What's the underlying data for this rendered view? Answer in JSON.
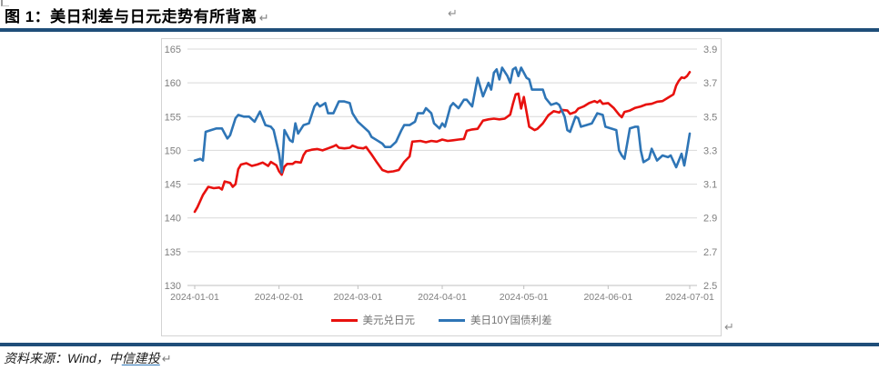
{
  "header": {
    "title": "图 1：美日利差与日元走势有所背离",
    "return_mark": "↵",
    "secondary_return_mark": "↵"
  },
  "footer": {
    "source_prefix": "资料来源：Wind，中",
    "source_link": "信建投",
    "return_mark": "↵"
  },
  "theme": {
    "rule_color": "#1f4e79",
    "axis_label_color": "#7f7f7f",
    "gridline_color": "#d9d9d9",
    "axis_line_color": "#bfbfbf",
    "box_border_color": "#d3d3d3",
    "legend_text_color": "#737373",
    "hyperlink_color": "#2e75b6"
  },
  "chart_data": {
    "type": "line",
    "title": "",
    "grid": true,
    "legend_position": "bottom",
    "x": {
      "labels": [
        "2024-01-01",
        "2024-02-01",
        "2024-03-01",
        "2024-04-01",
        "2024-05-01",
        "2024-06-01",
        "2024-07-01"
      ],
      "label_days": [
        0,
        31,
        60,
        91,
        121,
        152,
        182
      ],
      "domain_days": [
        0,
        182
      ]
    },
    "left_axis": {
      "min": 130,
      "max": 165,
      "ticks": [
        "165",
        "160",
        "155",
        "150",
        "145",
        "140",
        "135",
        "130"
      ]
    },
    "right_axis": {
      "min": 2.5,
      "max": 3.9,
      "ticks": [
        "3.9",
        "3.7",
        "3.5",
        "3.3",
        "3.1",
        "2.9",
        "2.7",
        "2.5"
      ]
    },
    "series": [
      {
        "name": "美元兑日元",
        "axis": "left",
        "color": "#e8110e",
        "points": [
          [
            0,
            140.9
          ],
          [
            1,
            141.6
          ],
          [
            3,
            143.4
          ],
          [
            5,
            144.6
          ],
          [
            7,
            144.4
          ],
          [
            9,
            144.5
          ],
          [
            10,
            144.2
          ],
          [
            11,
            145.4
          ],
          [
            13,
            145.2
          ],
          [
            14,
            144.6
          ],
          [
            15,
            145.0
          ],
          [
            16,
            147.2
          ],
          [
            17,
            147.9
          ],
          [
            19,
            148.1
          ],
          [
            21,
            147.7
          ],
          [
            23,
            147.9
          ],
          [
            25,
            148.2
          ],
          [
            27,
            147.7
          ],
          [
            28,
            148.3
          ],
          [
            30,
            147.8
          ],
          [
            31,
            146.9
          ],
          [
            32,
            146.4
          ],
          [
            33,
            147.6
          ],
          [
            34,
            148.0
          ],
          [
            36,
            148.0
          ],
          [
            37,
            148.3
          ],
          [
            39,
            148.2
          ],
          [
            40,
            149.3
          ],
          [
            41,
            149.9
          ],
          [
            43,
            150.1
          ],
          [
            45,
            150.2
          ],
          [
            47,
            150.0
          ],
          [
            49,
            150.3
          ],
          [
            51,
            150.6
          ],
          [
            52,
            150.8
          ],
          [
            53,
            150.4
          ],
          [
            55,
            150.3
          ],
          [
            57,
            150.4
          ],
          [
            58,
            150.7
          ],
          [
            60,
            150.4
          ],
          [
            62,
            150.3
          ],
          [
            63,
            150.5
          ],
          [
            65,
            149.4
          ],
          [
            67,
            148.2
          ],
          [
            69,
            147.1
          ],
          [
            71,
            146.8
          ],
          [
            73,
            146.9
          ],
          [
            75,
            147.1
          ],
          [
            77,
            148.3
          ],
          [
            79,
            149.1
          ],
          [
            80,
            151.3
          ],
          [
            83,
            151.4
          ],
          [
            85,
            151.2
          ],
          [
            87,
            151.4
          ],
          [
            89,
            151.3
          ],
          [
            91,
            151.6
          ],
          [
            93,
            151.4
          ],
          [
            95,
            151.5
          ],
          [
            97,
            151.6
          ],
          [
            99,
            151.7
          ],
          [
            100,
            152.9
          ],
          [
            102,
            153.1
          ],
          [
            104,
            153.2
          ],
          [
            106,
            154.4
          ],
          [
            108,
            154.6
          ],
          [
            110,
            154.7
          ],
          [
            112,
            154.6
          ],
          [
            114,
            154.7
          ],
          [
            116,
            155.3
          ],
          [
            117,
            156.9
          ],
          [
            118,
            158.3
          ],
          [
            119,
            158.4
          ],
          [
            120,
            156.2
          ],
          [
            121,
            157.9
          ],
          [
            123,
            153.5
          ],
          [
            125,
            153.0
          ],
          [
            126,
            153.2
          ],
          [
            128,
            154.0
          ],
          [
            130,
            155.2
          ],
          [
            132,
            155.8
          ],
          [
            134,
            155.6
          ],
          [
            135,
            156.0
          ],
          [
            137,
            155.9
          ],
          [
            138,
            155.4
          ],
          [
            140,
            155.7
          ],
          [
            141,
            156.2
          ],
          [
            143,
            156.5
          ],
          [
            145,
            157.0
          ],
          [
            147,
            157.3
          ],
          [
            148,
            157.1
          ],
          [
            149,
            157.4
          ],
          [
            150,
            156.9
          ],
          [
            152,
            157.0
          ],
          [
            154,
            156.3
          ],
          [
            156,
            155.3
          ],
          [
            157,
            154.9
          ],
          [
            158,
            155.7
          ],
          [
            160,
            155.9
          ],
          [
            162,
            156.3
          ],
          [
            164,
            156.5
          ],
          [
            166,
            156.8
          ],
          [
            168,
            156.9
          ],
          [
            170,
            157.2
          ],
          [
            172,
            157.3
          ],
          [
            174,
            157.8
          ],
          [
            176,
            158.3
          ],
          [
            177,
            159.6
          ],
          [
            178,
            160.3
          ],
          [
            179,
            160.8
          ],
          [
            180,
            160.7
          ],
          [
            181,
            161.0
          ],
          [
            182,
            161.6
          ]
        ]
      },
      {
        "name": "美日10Y国债利差",
        "axis": "right",
        "color": "#2e75b6",
        "points": [
          [
            0,
            3.24
          ],
          [
            2,
            3.25
          ],
          [
            3,
            3.24
          ],
          [
            4,
            3.41
          ],
          [
            6,
            3.42
          ],
          [
            8,
            3.43
          ],
          [
            10,
            3.43
          ],
          [
            11,
            3.4
          ],
          [
            12,
            3.37
          ],
          [
            13,
            3.39
          ],
          [
            15,
            3.49
          ],
          [
            16,
            3.51
          ],
          [
            18,
            3.5
          ],
          [
            20,
            3.5
          ],
          [
            22,
            3.47
          ],
          [
            23,
            3.5
          ],
          [
            24,
            3.53
          ],
          [
            26,
            3.45
          ],
          [
            28,
            3.44
          ],
          [
            29,
            3.42
          ],
          [
            31,
            3.28
          ],
          [
            32,
            3.17
          ],
          [
            33,
            3.42
          ],
          [
            35,
            3.36
          ],
          [
            36,
            3.35
          ],
          [
            37,
            3.46
          ],
          [
            38,
            3.4
          ],
          [
            40,
            3.45
          ],
          [
            42,
            3.46
          ],
          [
            44,
            3.56
          ],
          [
            45,
            3.58
          ],
          [
            46,
            3.56
          ],
          [
            48,
            3.58
          ],
          [
            49,
            3.52
          ],
          [
            51,
            3.52
          ],
          [
            53,
            3.59
          ],
          [
            55,
            3.59
          ],
          [
            57,
            3.58
          ],
          [
            58,
            3.52
          ],
          [
            60,
            3.47
          ],
          [
            62,
            3.44
          ],
          [
            64,
            3.41
          ],
          [
            65,
            3.38
          ],
          [
            67,
            3.36
          ],
          [
            69,
            3.34
          ],
          [
            70,
            3.32
          ],
          [
            72,
            3.32
          ],
          [
            74,
            3.35
          ],
          [
            76,
            3.42
          ],
          [
            77,
            3.45
          ],
          [
            79,
            3.45
          ],
          [
            81,
            3.47
          ],
          [
            82,
            3.52
          ],
          [
            84,
            3.52
          ],
          [
            85,
            3.55
          ],
          [
            87,
            3.52
          ],
          [
            88,
            3.46
          ],
          [
            90,
            3.43
          ],
          [
            91,
            3.46
          ],
          [
            92,
            3.44
          ],
          [
            94,
            3.56
          ],
          [
            95,
            3.58
          ],
          [
            97,
            3.55
          ],
          [
            99,
            3.6
          ],
          [
            100,
            3.6
          ],
          [
            102,
            3.56
          ],
          [
            104,
            3.73
          ],
          [
            106,
            3.62
          ],
          [
            108,
            3.7
          ],
          [
            109,
            3.66
          ],
          [
            110,
            3.76
          ],
          [
            111,
            3.78
          ],
          [
            112,
            3.72
          ],
          [
            113,
            3.79
          ],
          [
            115,
            3.74
          ],
          [
            116,
            3.7
          ],
          [
            117,
            3.78
          ],
          [
            118,
            3.79
          ],
          [
            119,
            3.74
          ],
          [
            120,
            3.79
          ],
          [
            122,
            3.73
          ],
          [
            123,
            3.72
          ],
          [
            124,
            3.66
          ],
          [
            126,
            3.66
          ],
          [
            128,
            3.66
          ],
          [
            129,
            3.61
          ],
          [
            131,
            3.57
          ],
          [
            133,
            3.58
          ],
          [
            134,
            3.57
          ],
          [
            136,
            3.5
          ],
          [
            137,
            3.42
          ],
          [
            138,
            3.41
          ],
          [
            140,
            3.5
          ],
          [
            141,
            3.49
          ],
          [
            142,
            3.44
          ],
          [
            144,
            3.45
          ],
          [
            146,
            3.46
          ],
          [
            148,
            3.52
          ],
          [
            150,
            3.51
          ],
          [
            151,
            3.44
          ],
          [
            153,
            3.43
          ],
          [
            155,
            3.42
          ],
          [
            156,
            3.3
          ],
          [
            157,
            3.27
          ],
          [
            158,
            3.25
          ],
          [
            160,
            3.43
          ],
          [
            162,
            3.44
          ],
          [
            163,
            3.44
          ],
          [
            164,
            3.3
          ],
          [
            165,
            3.23
          ],
          [
            167,
            3.25
          ],
          [
            168,
            3.31
          ],
          [
            170,
            3.24
          ],
          [
            172,
            3.27
          ],
          [
            174,
            3.26
          ],
          [
            175,
            3.27
          ],
          [
            177,
            3.2
          ],
          [
            179,
            3.28
          ],
          [
            180,
            3.21
          ],
          [
            181,
            3.3
          ],
          [
            182,
            3.4
          ]
        ]
      }
    ]
  }
}
